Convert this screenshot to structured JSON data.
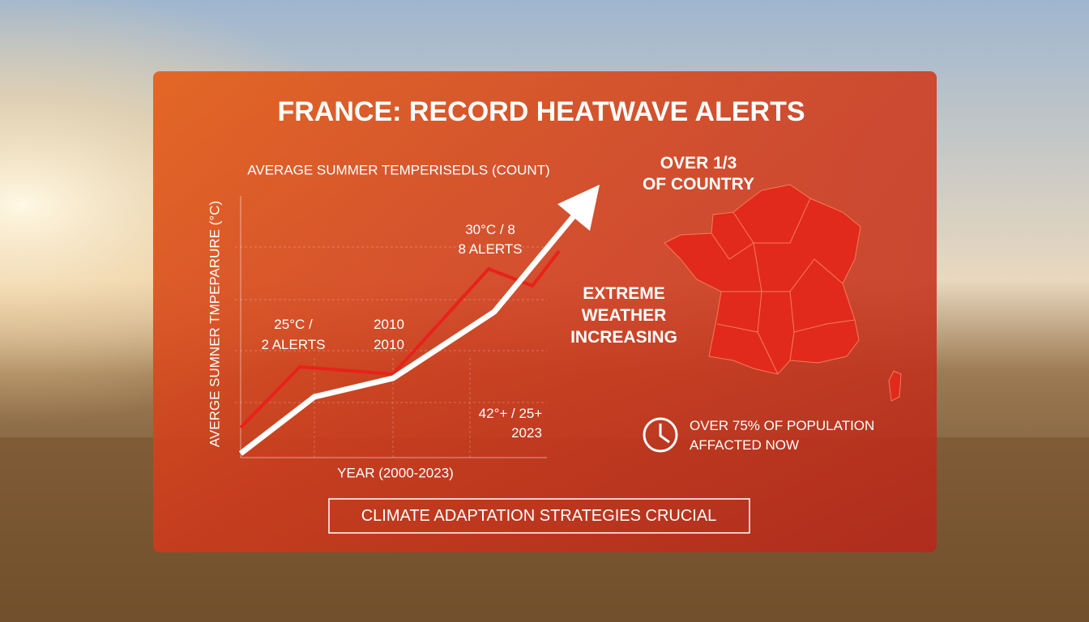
{
  "header": {
    "title": "FRANCE: RECORD HEATWAVE ALERTS"
  },
  "chart": {
    "subtitle": "AVERAGE SUMMER TEMPERISEDLS (COUNT)",
    "y_axis_label": "AVERGE SUMNER TMPEPARURE (°C)",
    "x_axis_label": "YEAR (2000-2023)",
    "annotations": [
      [
        "25°C /",
        "2 ALERTS"
      ],
      [
        "2010",
        "2010"
      ],
      [
        "30°C / 8",
        "8 ALERTS"
      ],
      [
        "42°+ / 25+",
        "2023"
      ]
    ]
  },
  "side": {
    "coverage": [
      "OVER 1/3",
      "OF COUNTRY"
    ],
    "trend": [
      "EXTREME",
      "WEATHER",
      "INCREASING"
    ],
    "population": [
      "OVER 75% OF POPULATION",
      "AFFACTED NOW"
    ]
  },
  "footer": {
    "banner": "CLIMATE ADAPTATION STRATEGIES CRUCIAL"
  }
}
